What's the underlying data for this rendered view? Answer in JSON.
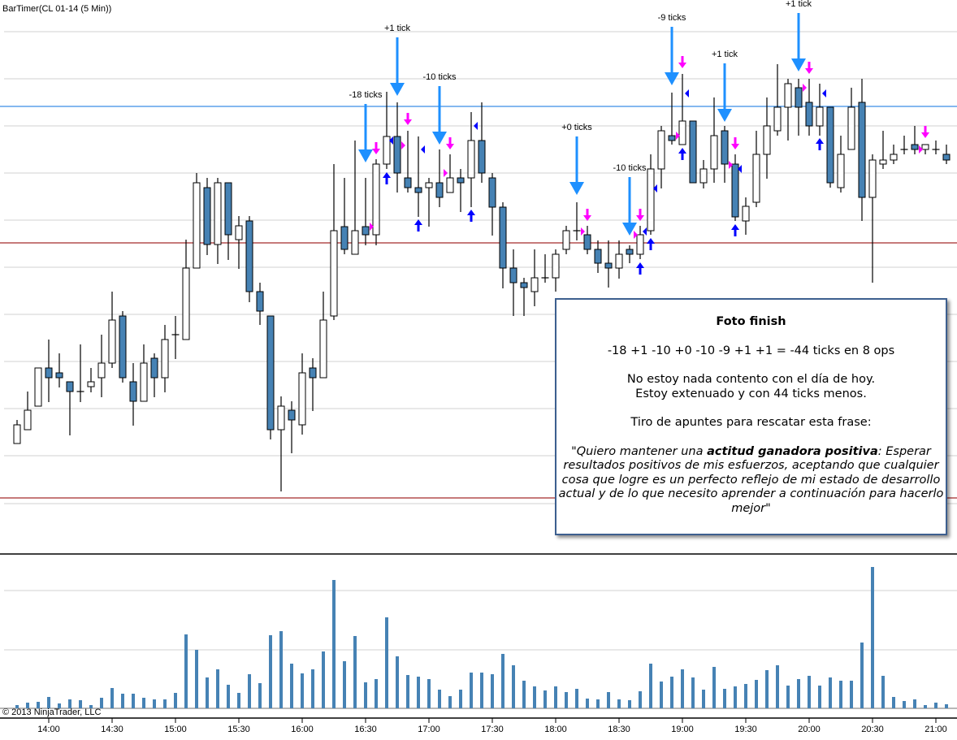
{
  "title": "BarTimer(CL 01-14 (5 Min))",
  "copyright": "© 2013 NinjaTrader, LLC",
  "note": {
    "heading": "Foto finish",
    "summary": "-18 +1 -10 +0 -10 -9 +1 +1 = -44 ticks en 8 ops",
    "line1": "No estoy nada contento con el día de hoy.",
    "line2": "Estoy extenuado y con 44 ticks menos.",
    "line3": "Tiro de apuntes para rescatar esta frase:",
    "quote_pre": "\"Quiero mantener una ",
    "quote_bold": "actitud ganadora positiva",
    "quote_post": ": Esperar resultados positivos de mis esfuerzos, aceptando que cualquier cosa que logre es un perfecto reflejo de mi estado de desarrollo actual y de lo que necesito aprender a continuación para hacerlo mejor\""
  },
  "colors": {
    "down": "#4682b4",
    "up": "#ffffff",
    "outline": "#000000",
    "volume": "#4682b4",
    "grid": "#e0e0e0",
    "red_line": "#a52a2a",
    "blue_line": "#3a8ee6",
    "entry_arrow": "#1e90ff",
    "exit_arrow": "#ff00ff",
    "fill_arrow": "#0000ff"
  },
  "chart_data": {
    "type": "candlestick",
    "symbol": "CL 01-14",
    "interval": "5 Min",
    "first_bar_time": "13:45",
    "x_ticks": [
      "14:00",
      "14:30",
      "15:00",
      "15:30",
      "16:00",
      "16:30",
      "17:00",
      "17:30",
      "18:00",
      "18:30",
      "19:00",
      "19:30",
      "20:00",
      "20:30",
      "21:00"
    ],
    "x_tick_bars": [
      3,
      9,
      15,
      21,
      27,
      33,
      39,
      45,
      51,
      57,
      63,
      69,
      75,
      81,
      87
    ],
    "ylim": [
      93.2,
      100.0
    ],
    "price_grid": [
      99.61,
      99.03,
      98.45,
      97.87,
      97.29,
      96.71,
      96.13,
      95.55,
      94.97,
      94.39,
      93.8
    ],
    "hlines": [
      {
        "price": 98.69,
        "color": "blue"
      },
      {
        "price": 97.01,
        "color": "red"
      },
      {
        "price": 93.87,
        "color": "red"
      }
    ],
    "ohlc": [
      [
        94.54,
        94.83,
        94.54,
        94.77
      ],
      [
        94.71,
        95.18,
        94.71,
        94.95
      ],
      [
        95.0,
        95.47,
        95.0,
        95.47
      ],
      [
        95.47,
        95.82,
        95.05,
        95.35
      ],
      [
        95.41,
        95.65,
        95.23,
        95.35
      ],
      [
        95.3,
        95.3,
        94.64,
        95.18
      ],
      [
        95.18,
        95.76,
        95.05,
        95.18
      ],
      [
        95.24,
        95.47,
        95.17,
        95.3
      ],
      [
        95.35,
        95.88,
        95.11,
        95.53
      ],
      [
        95.53,
        96.41,
        95.47,
        96.06
      ],
      [
        96.11,
        96.17,
        95.29,
        95.35
      ],
      [
        95.3,
        95.53,
        94.76,
        95.06
      ],
      [
        95.06,
        95.76,
        95.06,
        95.53
      ],
      [
        95.59,
        95.65,
        95.11,
        95.35
      ],
      [
        95.35,
        96.0,
        95.17,
        95.82
      ],
      [
        95.88,
        96.11,
        95.58,
        95.88
      ],
      [
        95.82,
        97.05,
        95.82,
        96.7
      ],
      [
        96.7,
        97.87,
        96.7,
        97.75
      ],
      [
        97.69,
        97.81,
        96.86,
        96.99
      ],
      [
        96.99,
        97.81,
        96.75,
        97.75
      ],
      [
        97.75,
        97.75,
        96.8,
        97.11
      ],
      [
        97.05,
        97.34,
        96.69,
        97.22
      ],
      [
        97.28,
        97.34,
        96.28,
        96.41
      ],
      [
        96.41,
        96.52,
        96.0,
        96.17
      ],
      [
        96.11,
        96.11,
        94.59,
        94.71
      ],
      [
        94.71,
        95.12,
        93.95,
        95.0
      ],
      [
        94.95,
        95.06,
        94.42,
        94.83
      ],
      [
        94.77,
        95.65,
        94.65,
        95.41
      ],
      [
        95.47,
        95.59,
        94.94,
        95.35
      ],
      [
        95.35,
        96.41,
        95.35,
        96.06
      ],
      [
        96.11,
        97.98,
        96.06,
        97.16
      ],
      [
        97.21,
        97.81,
        96.87,
        96.93
      ],
      [
        96.87,
        98.27,
        96.87,
        97.16
      ],
      [
        97.21,
        97.81,
        96.98,
        97.11
      ],
      [
        97.11,
        98.04,
        96.98,
        97.98
      ],
      [
        97.98,
        98.87,
        97.92,
        98.32
      ],
      [
        98.32,
        98.74,
        97.63,
        97.87
      ],
      [
        97.81,
        98.39,
        97.63,
        97.69
      ],
      [
        97.69,
        98.32,
        97.33,
        97.63
      ],
      [
        97.69,
        97.81,
        97.21,
        97.75
      ],
      [
        97.75,
        98.16,
        97.45,
        97.57
      ],
      [
        97.63,
        98.1,
        97.63,
        97.81
      ],
      [
        97.81,
        97.92,
        97.39,
        97.75
      ],
      [
        97.81,
        98.62,
        97.45,
        98.27
      ],
      [
        98.27,
        98.74,
        97.75,
        97.87
      ],
      [
        97.81,
        97.87,
        97.1,
        97.45
      ],
      [
        97.45,
        97.51,
        96.45,
        96.7
      ],
      [
        96.7,
        96.93,
        96.11,
        96.52
      ],
      [
        96.52,
        96.58,
        96.11,
        96.46
      ],
      [
        96.41,
        96.93,
        96.23,
        96.58
      ],
      [
        96.58,
        96.87,
        96.52,
        96.58
      ],
      [
        96.58,
        96.93,
        96.41,
        96.87
      ],
      [
        96.93,
        97.22,
        96.87,
        97.16
      ],
      [
        97.16,
        97.51,
        97.04,
        97.16
      ],
      [
        97.11,
        97.22,
        96.87,
        96.93
      ],
      [
        96.93,
        97.04,
        96.64,
        96.76
      ],
      [
        96.76,
        97.04,
        96.46,
        96.7
      ],
      [
        96.7,
        97.04,
        96.57,
        96.87
      ],
      [
        96.93,
        96.98,
        96.76,
        96.87
      ],
      [
        96.87,
        97.22,
        96.81,
        97.11
      ],
      [
        97.16,
        98.1,
        97.11,
        97.92
      ],
      [
        97.92,
        98.45,
        97.68,
        98.39
      ],
      [
        98.33,
        98.86,
        98.22,
        98.27
      ],
      [
        98.22,
        99.09,
        98.22,
        98.51
      ],
      [
        98.51,
        98.51,
        97.75,
        97.75
      ],
      [
        97.75,
        98.03,
        97.68,
        97.92
      ],
      [
        97.92,
        98.8,
        97.75,
        98.33
      ],
      [
        98.39,
        98.45,
        97.75,
        97.98
      ],
      [
        97.98,
        98.1,
        97.28,
        97.33
      ],
      [
        97.28,
        97.57,
        97.11,
        97.46
      ],
      [
        97.51,
        98.39,
        97.45,
        98.1
      ],
      [
        98.1,
        98.8,
        97.8,
        98.45
      ],
      [
        98.39,
        99.21,
        98.33,
        98.68
      ],
      [
        98.68,
        99.03,
        98.27,
        98.97
      ],
      [
        98.92,
        99.03,
        98.33,
        98.68
      ],
      [
        98.74,
        99.03,
        98.33,
        98.45
      ],
      [
        98.45,
        98.97,
        98.33,
        98.68
      ],
      [
        98.68,
        98.68,
        97.69,
        97.75
      ],
      [
        97.69,
        98.33,
        97.63,
        98.1
      ],
      [
        98.16,
        98.92,
        98.16,
        98.68
      ],
      [
        98.74,
        99.03,
        97.28,
        97.57
      ],
      [
        97.57,
        98.1,
        96.52,
        98.03
      ],
      [
        97.98,
        98.39,
        97.92,
        98.03
      ],
      [
        98.03,
        98.22,
        97.98,
        98.1
      ],
      [
        98.16,
        98.33,
        98.1,
        98.16
      ],
      [
        98.22,
        98.45,
        98.1,
        98.16
      ],
      [
        98.16,
        98.22,
        98.1,
        98.22
      ],
      [
        98.16,
        98.27,
        98.1,
        98.16
      ],
      [
        98.1,
        98.22,
        97.98,
        98.03
      ]
    ],
    "volume_ylim": [
      0,
      18900
    ],
    "volume_grid": [
      7200,
      14500
    ],
    "volume": [
      400,
      700,
      800,
      1400,
      600,
      1100,
      1000,
      400,
      1300,
      2500,
      1800,
      1800,
      1300,
      1100,
      1100,
      1900,
      9100,
      7200,
      3800,
      4800,
      2900,
      1900,
      4200,
      3100,
      9000,
      9500,
      5500,
      4300,
      4800,
      7000,
      15800,
      5800,
      8900,
      3200,
      3600,
      11200,
      6400,
      4100,
      3900,
      3600,
      2300,
      1500,
      2300,
      4400,
      4400,
      4200,
      6700,
      5300,
      3400,
      2700,
      2200,
      2700,
      2000,
      2400,
      1200,
      1100,
      2000,
      1100,
      1000,
      2100,
      5500,
      3300,
      3900,
      4800,
      3800,
      2300,
      5100,
      2400,
      2700,
      3000,
      3500,
      4700,
      5300,
      2800,
      3600,
      4000,
      2800,
      3800,
      3400,
      3400,
      8100,
      17400,
      4000,
      1400,
      900,
      1100,
      400,
      700,
      500
    ],
    "entries": [
      {
        "bar": 33,
        "price": 98.0,
        "label": "-18 ticks"
      },
      {
        "bar": 36,
        "price": 98.82,
        "label": "+1 tick"
      },
      {
        "bar": 40,
        "price": 98.22,
        "label": "-10 ticks"
      },
      {
        "bar": 53,
        "price": 97.6,
        "label": "+0 ticks"
      },
      {
        "bar": 58,
        "price": 97.1,
        "label": "-10 ticks"
      },
      {
        "bar": 62,
        "price": 98.95,
        "label": "-9 ticks"
      },
      {
        "bar": 67,
        "price": 98.5,
        "label": "+1 tick"
      },
      {
        "bar": 74,
        "price": 99.12,
        "label": "+1 tick"
      }
    ],
    "exit_arrows": [
      [
        34,
        98.17
      ],
      [
        37,
        98.53
      ],
      [
        41,
        98.23
      ],
      [
        54,
        97.35
      ],
      [
        59,
        97.35
      ],
      [
        63,
        99.23
      ],
      [
        68,
        98.23
      ],
      [
        75,
        99.16
      ],
      [
        86,
        98.37
      ]
    ],
    "fill_up_arrows": [
      [
        35,
        97.8
      ],
      [
        38,
        97.22
      ],
      [
        43,
        97.34
      ],
      [
        59,
        96.69
      ],
      [
        60,
        96.99
      ],
      [
        63,
        98.1
      ],
      [
        68,
        97.16
      ],
      [
        76,
        98.22
      ]
    ],
    "right_triangles": [
      [
        34,
        97.21
      ],
      [
        37,
        98.21
      ],
      [
        41,
        97.87
      ],
      [
        54,
        97.15
      ],
      [
        59,
        97.11
      ],
      [
        63,
        98.33
      ],
      [
        68,
        97.97
      ],
      [
        75,
        98.92
      ],
      [
        86,
        98.16
      ]
    ],
    "left_triangles": [
      [
        35,
        98.27
      ],
      [
        38,
        98.16
      ],
      [
        43,
        98.45
      ],
      [
        59,
        97.15
      ],
      [
        60,
        97.68
      ],
      [
        63,
        98.85
      ],
      [
        68,
        97.92
      ],
      [
        76,
        98.85
      ]
    ]
  }
}
